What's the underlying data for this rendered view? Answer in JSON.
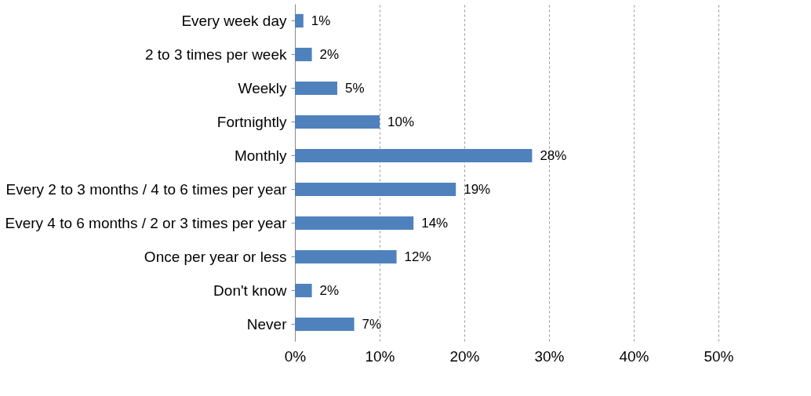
{
  "chart_data": {
    "type": "bar",
    "orientation": "horizontal",
    "categories": [
      "Every week day",
      "2 to 3 times per week",
      "Weekly",
      "Fortnightly",
      "Monthly",
      "Every 2 to 3 months / 4 to 6 times per year",
      "Every 4 to 6 months / 2 or 3 times per year",
      "Once per year or less",
      "Don't know",
      "Never"
    ],
    "values": [
      1,
      2,
      5,
      10,
      28,
      19,
      14,
      12,
      2,
      7
    ],
    "value_labels": [
      "1%",
      "2%",
      "5%",
      "10%",
      "28%",
      "19%",
      "14%",
      "12%",
      "2%",
      "7%"
    ],
    "color": "#4f81bd",
    "xlim": [
      0,
      50
    ],
    "xticks": [
      {
        "value": 0,
        "label": "0%"
      },
      {
        "value": 10,
        "label": "10%"
      },
      {
        "value": 20,
        "label": "20%"
      },
      {
        "value": 30,
        "label": "30%"
      },
      {
        "value": 40,
        "label": "40%"
      },
      {
        "value": 50,
        "label": "50%"
      }
    ],
    "grid": "x"
  }
}
